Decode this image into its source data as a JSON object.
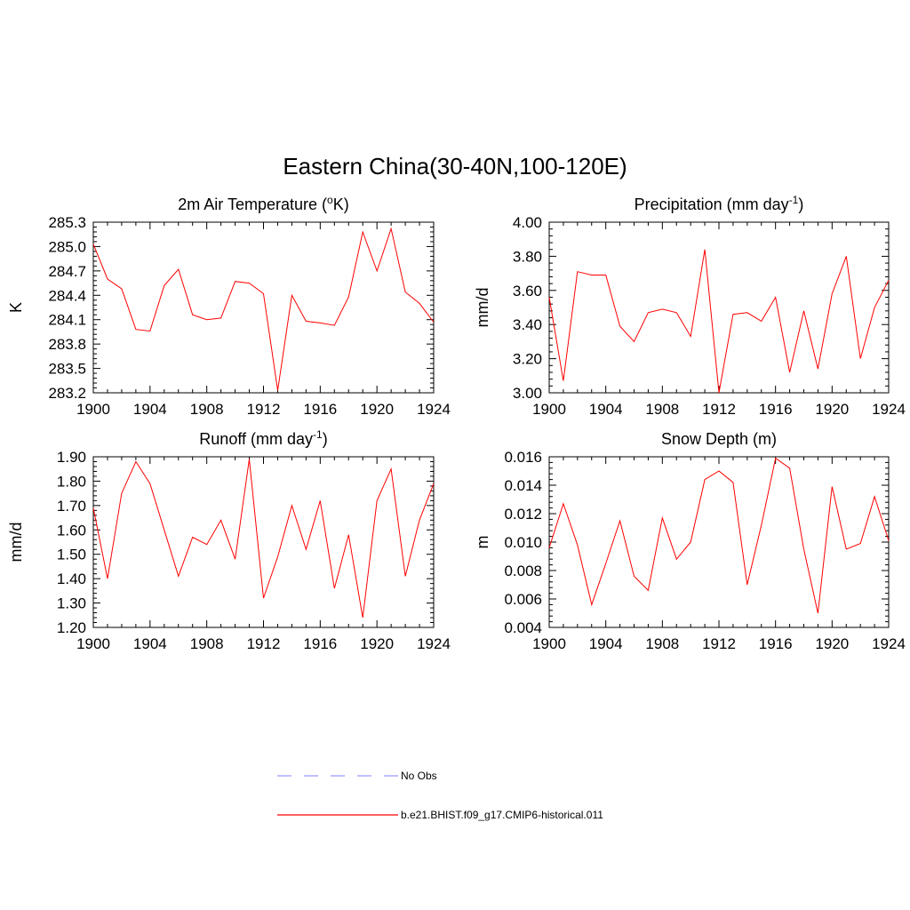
{
  "figure": {
    "title": "Eastern China(30-40N,100-120E)"
  },
  "colors": {
    "model_line": "#ff0000",
    "obs_line": "#9999ff",
    "axis": "#000000"
  },
  "legend": {
    "entries": [
      {
        "label": "No Obs",
        "style": "dashed",
        "color": "#9999ff"
      },
      {
        "label": "b.e21.BHIST.f09_g17.CMIP6-historical.011",
        "style": "solid",
        "color": "#ff0000"
      }
    ]
  },
  "chart_data": [
    {
      "type": "line",
      "title": "2m Air Temperature (",
      "title_super": "o",
      "title_suffix": "K)",
      "ylabel": "K",
      "xlim": [
        1900,
        1924
      ],
      "ylim": [
        283.2,
        285.3
      ],
      "xticks": [
        1900,
        1904,
        1908,
        1912,
        1916,
        1920,
        1924
      ],
      "yticks": [
        283.2,
        283.5,
        283.8,
        284.1,
        284.4,
        284.7,
        285.0,
        285.3
      ],
      "ytick_decimals": 1,
      "x": [
        1900,
        1901,
        1902,
        1903,
        1904,
        1905,
        1906,
        1907,
        1908,
        1909,
        1910,
        1911,
        1912,
        1913,
        1914,
        1915,
        1916,
        1917,
        1918,
        1919,
        1920,
        1921,
        1922,
        1923,
        1924
      ],
      "series": [
        {
          "values": [
            285.03,
            284.6,
            284.48,
            283.98,
            283.96,
            284.52,
            284.72,
            284.16,
            284.1,
            284.12,
            284.57,
            284.55,
            284.42,
            283.23,
            284.4,
            284.08,
            284.06,
            284.03,
            284.38,
            285.18,
            284.7,
            285.22,
            284.44,
            284.3,
            284.07
          ]
        }
      ]
    },
    {
      "type": "line",
      "title": "Precipitation (mm day",
      "title_super": "-1",
      "title_suffix": ")",
      "ylabel": "mm/d",
      "xlim": [
        1900,
        1924
      ],
      "ylim": [
        3.0,
        4.0
      ],
      "xticks": [
        1900,
        1904,
        1908,
        1912,
        1916,
        1920,
        1924
      ],
      "yticks": [
        3.0,
        3.2,
        3.4,
        3.6,
        3.8,
        4.0
      ],
      "ytick_decimals": 2,
      "x": [
        1900,
        1901,
        1902,
        1903,
        1904,
        1905,
        1906,
        1907,
        1908,
        1909,
        1910,
        1911,
        1912,
        1913,
        1914,
        1915,
        1916,
        1917,
        1918,
        1919,
        1920,
        1921,
        1922,
        1923,
        1924
      ],
      "series": [
        {
          "values": [
            3.56,
            3.07,
            3.71,
            3.69,
            3.69,
            3.39,
            3.3,
            3.47,
            3.49,
            3.47,
            3.33,
            3.84,
            3.0,
            3.46,
            3.47,
            3.42,
            3.56,
            3.12,
            3.48,
            3.14,
            3.58,
            3.8,
            3.2,
            3.5,
            3.66
          ]
        }
      ]
    },
    {
      "type": "line",
      "title": "Runoff (mm day",
      "title_super": "-1",
      "title_suffix": ")",
      "ylabel": "mm/d",
      "xlim": [
        1900,
        1924
      ],
      "ylim": [
        1.2,
        1.9
      ],
      "xticks": [
        1900,
        1904,
        1908,
        1912,
        1916,
        1920,
        1924
      ],
      "yticks": [
        1.2,
        1.3,
        1.4,
        1.5,
        1.6,
        1.7,
        1.8,
        1.9
      ],
      "ytick_decimals": 2,
      "x": [
        1900,
        1901,
        1902,
        1903,
        1904,
        1905,
        1906,
        1907,
        1908,
        1909,
        1910,
        1911,
        1912,
        1913,
        1914,
        1915,
        1916,
        1917,
        1918,
        1919,
        1920,
        1921,
        1922,
        1923,
        1924
      ],
      "series": [
        {
          "values": [
            1.69,
            1.4,
            1.75,
            1.88,
            1.79,
            1.6,
            1.41,
            1.57,
            1.54,
            1.64,
            1.48,
            1.89,
            1.32,
            1.49,
            1.7,
            1.52,
            1.72,
            1.36,
            1.58,
            1.24,
            1.72,
            1.85,
            1.41,
            1.64,
            1.79
          ]
        }
      ]
    },
    {
      "type": "line",
      "title": "Snow Depth (m)",
      "title_super": "",
      "title_suffix": "",
      "ylabel": "m",
      "xlim": [
        1900,
        1924
      ],
      "ylim": [
        0.004,
        0.016
      ],
      "xticks": [
        1900,
        1904,
        1908,
        1912,
        1916,
        1920,
        1924
      ],
      "yticks": [
        0.004,
        0.006,
        0.008,
        0.01,
        0.012,
        0.014,
        0.016
      ],
      "ytick_decimals": 3,
      "x": [
        1900,
        1901,
        1902,
        1903,
        1904,
        1905,
        1906,
        1907,
        1908,
        1909,
        1910,
        1911,
        1912,
        1913,
        1914,
        1915,
        1916,
        1917,
        1918,
        1919,
        1920,
        1921,
        1922,
        1923,
        1924
      ],
      "series": [
        {
          "values": [
            0.0096,
            0.0127,
            0.0098,
            0.0056,
            0.0085,
            0.0115,
            0.0076,
            0.0066,
            0.0117,
            0.0088,
            0.01,
            0.0144,
            0.015,
            0.0142,
            0.007,
            0.0112,
            0.0159,
            0.0152,
            0.0095,
            0.005,
            0.0139,
            0.0095,
            0.0099,
            0.0132,
            0.0101
          ]
        }
      ]
    }
  ]
}
